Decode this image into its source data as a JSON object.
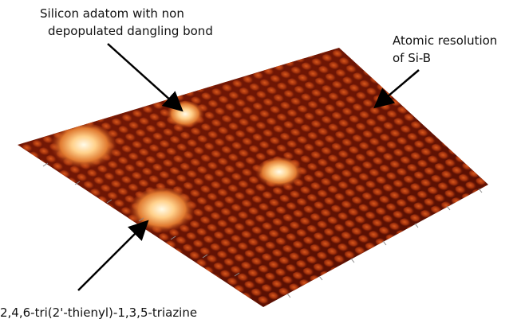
{
  "annotations": {
    "adatom": {
      "line1": "Silicon adatom with non",
      "line2": "depopulated dangling bond"
    },
    "resolution": {
      "line1": "Atomic resolution",
      "line2": "of Si-B"
    },
    "molecule": {
      "line1": "2,4,6-tri(2'-thienyl)-1,3,5-triazine"
    }
  }
}
